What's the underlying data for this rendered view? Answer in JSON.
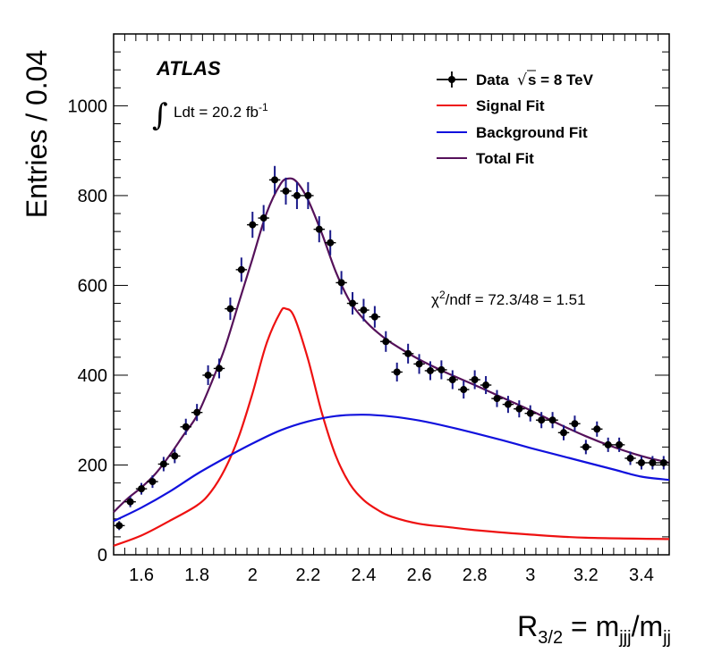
{
  "chart_data": {
    "type": "line",
    "x_label_parts": {
      "main": "R",
      "sub": "3/2",
      "eq": " = m",
      "sub2": "jjj",
      "slash": "/m",
      "sub3": "jj"
    },
    "ylabel": "Entries / 0.04",
    "xlim": [
      1.5,
      3.5
    ],
    "ylim": [
      0,
      1160
    ],
    "x_ticks": [
      1.6,
      1.8,
      2,
      2.2,
      2.4,
      2.6,
      2.8,
      3,
      3.2,
      3.4
    ],
    "x_tick_labels": [
      "1.6",
      "1.8",
      "2",
      "2.2",
      "2.4",
      "2.6",
      "2.8",
      "3",
      "3.2",
      "3.4"
    ],
    "y_ticks": [
      0,
      200,
      400,
      600,
      800,
      1000
    ],
    "y_tick_labels": [
      "0",
      "200",
      "400",
      "600",
      "800",
      "1000"
    ],
    "experiment": "ATLAS",
    "lumi": {
      "integral": "∫",
      "text": "Ldt = 20.2 fb",
      "sup": "-1"
    },
    "chi2": {
      "prefix": "χ",
      "sup": "2",
      "text": "/ndf = 72.3/48 = 1.51"
    },
    "legend": [
      {
        "label": "Data",
        "extra_sqrt": "√",
        "extra": "s = 8 TeV",
        "kind": "marker",
        "color": "#000000"
      },
      {
        "label": "Signal Fit",
        "kind": "line",
        "color": "#ee1111"
      },
      {
        "label": "Background Fit",
        "kind": "line",
        "color": "#1111dd"
      },
      {
        "label": "Total Fit",
        "kind": "line",
        "color": "#55115a"
      }
    ],
    "data_points": {
      "x": [
        1.52,
        1.56,
        1.6,
        1.64,
        1.68,
        1.72,
        1.76,
        1.8,
        1.84,
        1.88,
        1.92,
        1.96,
        2.0,
        2.04,
        2.08,
        2.12,
        2.16,
        2.2,
        2.24,
        2.28,
        2.32,
        2.36,
        2.4,
        2.44,
        2.48,
        2.52,
        2.56,
        2.6,
        2.64,
        2.68,
        2.72,
        2.76,
        2.8,
        2.84,
        2.88,
        2.92,
        2.96,
        3.0,
        3.04,
        3.08,
        3.12,
        3.16,
        3.2,
        3.24,
        3.28,
        3.32,
        3.36,
        3.4,
        3.44,
        3.48
      ],
      "y": [
        65,
        118,
        147,
        163,
        202,
        220,
        285,
        317,
        400,
        415,
        548,
        635,
        735,
        750,
        835,
        810,
        800,
        800,
        725,
        695,
        606,
        560,
        545,
        530,
        475,
        407,
        448,
        425,
        410,
        412,
        390,
        368,
        390,
        378,
        348,
        335,
        325,
        315,
        300,
        300,
        272,
        292,
        240,
        280,
        245,
        245,
        215,
        205,
        205,
        205
      ],
      "err": [
        10,
        12,
        13,
        14,
        16,
        16,
        18,
        19,
        22,
        22,
        25,
        27,
        29,
        29,
        31,
        30,
        30,
        30,
        29,
        28,
        26,
        25,
        25,
        24,
        23,
        21,
        22,
        22,
        21,
        21,
        21,
        20,
        21,
        20,
        19,
        19,
        19,
        18,
        18,
        18,
        17,
        18,
        16,
        17,
        16,
        16,
        15,
        15,
        15,
        15
      ]
    },
    "series": [
      {
        "name": "Signal Fit",
        "color": "#ee1111",
        "x": [
          1.5,
          1.6,
          1.7,
          1.8,
          1.85,
          1.9,
          1.95,
          2.0,
          2.05,
          2.1,
          2.12,
          2.15,
          2.2,
          2.25,
          2.3,
          2.35,
          2.4,
          2.45,
          2.5,
          2.6,
          2.7,
          2.8,
          3.0,
          3.2,
          3.5
        ],
        "y": [
          20,
          43,
          75,
          110,
          140,
          190,
          262,
          360,
          470,
          540,
          548,
          530,
          435,
          315,
          220,
          158,
          122,
          100,
          85,
          69,
          62,
          55,
          45,
          38,
          35
        ]
      },
      {
        "name": "Background Fit",
        "color": "#1111dd",
        "x": [
          1.5,
          1.6,
          1.7,
          1.8,
          1.9,
          2.0,
          2.1,
          2.2,
          2.3,
          2.4,
          2.5,
          2.6,
          2.7,
          2.8,
          2.9,
          3.0,
          3.1,
          3.2,
          3.3,
          3.4,
          3.5
        ],
        "y": [
          75,
          105,
          140,
          180,
          215,
          248,
          277,
          297,
          309,
          312,
          308,
          299,
          286,
          271,
          255,
          238,
          222,
          206,
          190,
          174,
          167
        ]
      },
      {
        "name": "Total Fit",
        "color": "#55115a",
        "x": [
          1.5,
          1.55,
          1.6,
          1.65,
          1.7,
          1.75,
          1.8,
          1.85,
          1.9,
          1.95,
          2.0,
          2.05,
          2.1,
          2.13,
          2.16,
          2.2,
          2.25,
          2.3,
          2.35,
          2.4,
          2.45,
          2.5,
          2.6,
          2.7,
          2.8,
          2.9,
          3.0,
          3.1,
          3.2,
          3.3,
          3.4,
          3.5
        ],
        "y": [
          95,
          125,
          150,
          180,
          220,
          265,
          310,
          380,
          460,
          560,
          660,
          760,
          825,
          838,
          830,
          790,
          715,
          630,
          565,
          525,
          495,
          472,
          435,
          405,
          378,
          350,
          322,
          292,
          264,
          240,
          220,
          205
        ]
      }
    ]
  }
}
